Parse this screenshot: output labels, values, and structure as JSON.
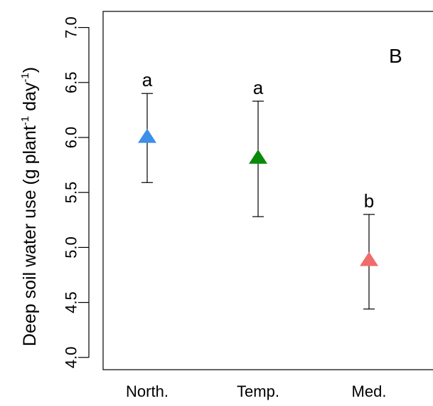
{
  "chart_data": {
    "type": "scatter",
    "panel_label": "B",
    "ylabel": {
      "main": "Deep soil water use (g  plant",
      "sup1": "-1",
      "mid": " day",
      "sup2": "-1",
      "end": ")"
    },
    "ylim": [
      3.9,
      7.05
    ],
    "yticks": [
      4.0,
      4.5,
      5.0,
      5.5,
      6.0,
      6.5,
      7.0
    ],
    "ytick_labels": [
      "4.0",
      "4.5",
      "5.0",
      "5.5",
      "6.0",
      "6.5",
      "7.0"
    ],
    "categories": [
      "North.",
      "Temp.",
      "Med."
    ],
    "points": [
      {
        "category": "North.",
        "mean": 6.0,
        "lower": 5.59,
        "upper": 6.4,
        "significance": "a",
        "color": "#3d8fe8"
      },
      {
        "category": "Temp.",
        "mean": 5.81,
        "lower": 5.28,
        "upper": 6.33,
        "significance": "a",
        "color": "#0a8a0a"
      },
      {
        "category": "Med.",
        "mean": 4.88,
        "lower": 4.44,
        "upper": 5.3,
        "significance": "b",
        "color": "#f26b6b"
      }
    ],
    "grid": false
  }
}
